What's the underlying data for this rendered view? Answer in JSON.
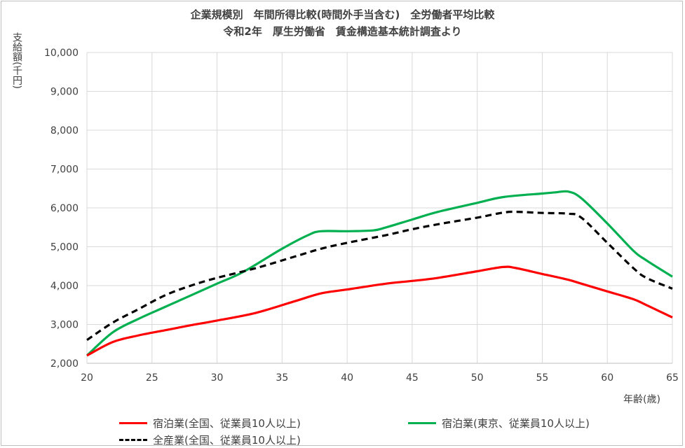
{
  "chart_data": {
    "type": "line",
    "title": "企業規模別　年間所得比較(時間外手当含む)　全労働者平均比較",
    "subtitle": "令和2年　厚生労働省　賃金構造基本統計調査より",
    "ylabel": "支給額(千円)",
    "xlabel": "年齢(歳)",
    "xlim": [
      20,
      65
    ],
    "ylim": [
      2000,
      10000
    ],
    "x_ticks": [
      "20",
      "25",
      "30",
      "35",
      "40",
      "45",
      "50",
      "55",
      "60",
      "65"
    ],
    "y_ticks": [
      "2,000",
      "3,000",
      "4,000",
      "5,000",
      "6,000",
      "7,000",
      "8,000",
      "9,000",
      "10,000"
    ],
    "grid": true,
    "legend_position": "bottom",
    "series": [
      {
        "name": "宿泊業(全国、従業員10人以上)",
        "color": "#ff0000",
        "style": "solid",
        "x": [
          20,
          22,
          24,
          26,
          28,
          30,
          33,
          36,
          38,
          40,
          43,
          45,
          47,
          50,
          52,
          53,
          55,
          57,
          58,
          60,
          62,
          63,
          65
        ],
        "y": [
          2200,
          2550,
          2720,
          2850,
          2980,
          3100,
          3300,
          3600,
          3800,
          3900,
          4050,
          4120,
          4200,
          4370,
          4480,
          4450,
          4300,
          4150,
          4050,
          3850,
          3650,
          3500,
          3180
        ]
      },
      {
        "name": "宿泊業(東京、従業員10人以上)",
        "color": "#00b050",
        "style": "solid",
        "x": [
          20,
          22,
          24,
          26,
          28,
          30,
          32,
          35,
          37,
          38,
          40,
          42,
          43,
          45,
          47,
          50,
          52,
          55,
          56,
          57,
          58,
          60,
          62,
          63,
          65
        ],
        "y": [
          2200,
          2800,
          3150,
          3450,
          3750,
          4050,
          4350,
          4950,
          5300,
          5400,
          5400,
          5420,
          5500,
          5700,
          5900,
          6130,
          6280,
          6370,
          6400,
          6420,
          6250,
          5600,
          4900,
          4650,
          4230
        ]
      },
      {
        "name": "全産業(全国、従業員10人以上)",
        "color": "#000000",
        "style": "dashed",
        "x": [
          20,
          22,
          24,
          26,
          28,
          30,
          33,
          36,
          38,
          40,
          43,
          45,
          47,
          50,
          52,
          53,
          55,
          57,
          58,
          60,
          62,
          63,
          65
        ],
        "y": [
          2600,
          3050,
          3400,
          3750,
          4000,
          4200,
          4450,
          4750,
          4950,
          5100,
          5300,
          5450,
          5580,
          5750,
          5880,
          5900,
          5870,
          5850,
          5750,
          5100,
          4450,
          4200,
          3920
        ]
      }
    ]
  }
}
